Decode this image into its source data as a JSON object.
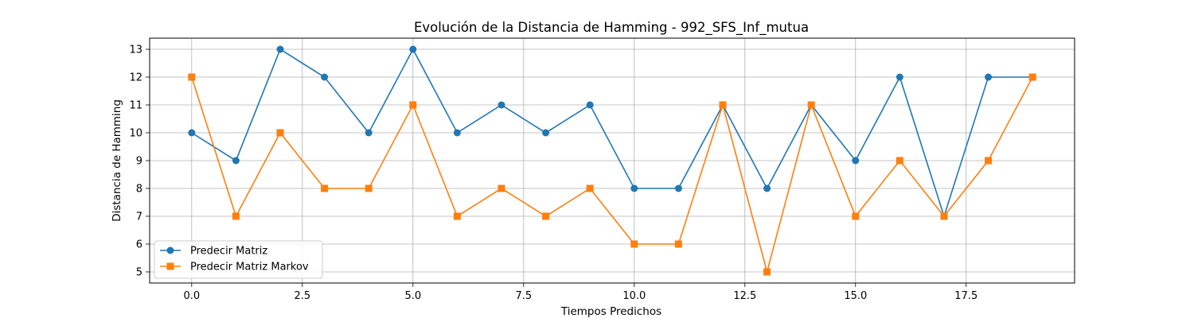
{
  "chart_data": {
    "type": "line",
    "title": "Evolución de la Distancia de Hamming - 992_SFS_Inf_mutua",
    "xlabel": "Tiempos Predichos",
    "ylabel": "Distancia de Hamming",
    "x": [
      0,
      1,
      2,
      3,
      4,
      5,
      6,
      7,
      8,
      9,
      10,
      11,
      12,
      13,
      14,
      15,
      16,
      17,
      18,
      19
    ],
    "xlim": [
      -0.95,
      19.95
    ],
    "ylim": [
      4.6,
      13.4
    ],
    "x_ticks": [
      0.0,
      2.5,
      5.0,
      7.5,
      10.0,
      12.5,
      15.0,
      17.5
    ],
    "x_tick_labels": [
      "0.0",
      "2.5",
      "5.0",
      "7.5",
      "10.0",
      "12.5",
      "15.0",
      "17.5"
    ],
    "y_ticks": [
      5,
      6,
      7,
      8,
      9,
      10,
      11,
      12,
      13
    ],
    "y_tick_labels": [
      "5",
      "6",
      "7",
      "8",
      "9",
      "10",
      "11",
      "12",
      "13"
    ],
    "grid": true,
    "legend_position": "bottom-left",
    "series": [
      {
        "name": "Predecir Matriz",
        "color": "#1f77b4",
        "marker": "circle",
        "values": [
          10,
          9,
          13,
          12,
          10,
          13,
          10,
          11,
          10,
          11,
          8,
          8,
          11,
          8,
          11,
          9,
          12,
          7,
          12,
          12
        ]
      },
      {
        "name": "Predecir Matriz Markov",
        "color": "#ff7f0e",
        "marker": "square",
        "values": [
          12,
          7,
          10,
          8,
          8,
          11,
          7,
          8,
          7,
          8,
          6,
          6,
          11,
          5,
          11,
          7,
          9,
          7,
          9,
          12
        ]
      }
    ]
  }
}
